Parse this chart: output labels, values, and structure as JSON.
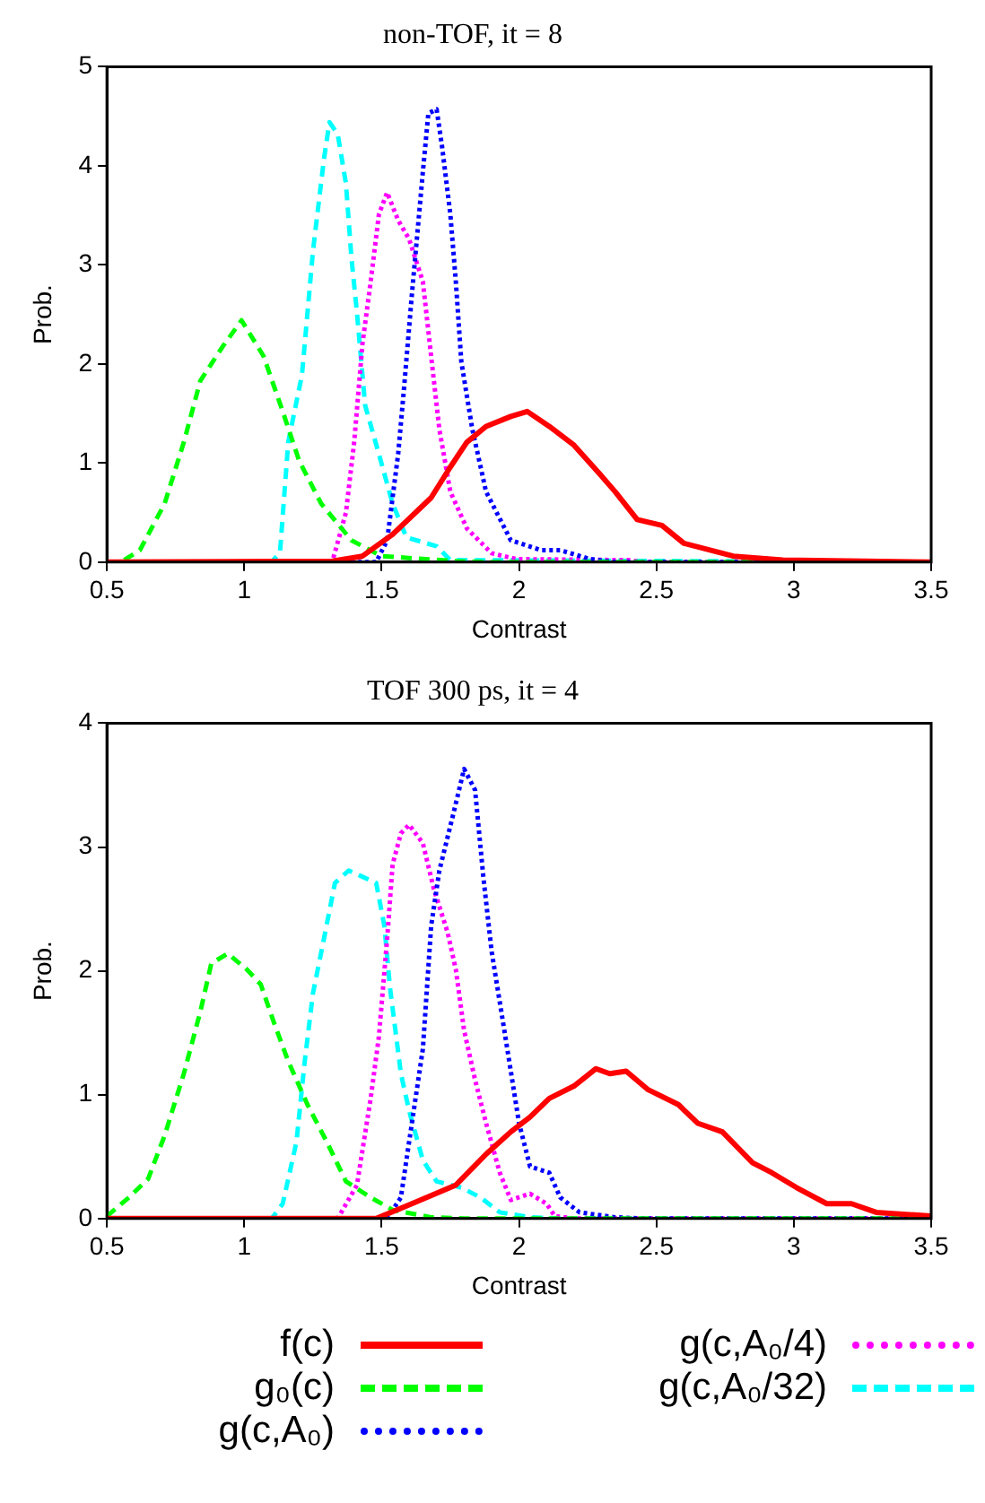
{
  "chart_data": [
    {
      "type": "line",
      "title": "non-TOF, it = 8",
      "xlabel": "Contrast",
      "ylabel": "Prob.",
      "xlim": [
        0.5,
        3.5
      ],
      "ylim": [
        0,
        5
      ],
      "xticks": [
        0.5,
        1,
        1.5,
        2,
        2.5,
        3,
        3.5
      ],
      "yticks": [
        0,
        1,
        2,
        3,
        4,
        5
      ],
      "grid": false,
      "legend": false,
      "marker": "none",
      "series": [
        {
          "color": "#ff0000",
          "line_style": "solid",
          "x": [
            0.5,
            1.32,
            1.43,
            1.54,
            1.68,
            1.75,
            1.81,
            1.88,
            1.97,
            2.03,
            2.11,
            2.2,
            2.29,
            2.35,
            2.43,
            2.52,
            2.6,
            2.78,
            2.96,
            3.5
          ],
          "values": [
            0,
            0.01,
            0.06,
            0.28,
            0.65,
            0.96,
            1.21,
            1.37,
            1.47,
            1.52,
            1.37,
            1.18,
            0.9,
            0.71,
            0.43,
            0.37,
            0.19,
            0.06,
            0.02,
            0
          ]
        },
        {
          "color": "#00ff00",
          "line_style": "dashed",
          "x": [
            0.5,
            0.55,
            0.62,
            0.71,
            0.78,
            0.84,
            0.92,
            0.99,
            1.07,
            1.14,
            1.2,
            1.28,
            1.39,
            1.5,
            1.77,
            1.9,
            3.5
          ],
          "values": [
            0,
            0,
            0.12,
            0.59,
            1.21,
            1.83,
            2.17,
            2.44,
            2.08,
            1.52,
            1.02,
            0.59,
            0.22,
            0.06,
            0.01,
            0,
            0
          ]
        },
        {
          "color": "#0000ff",
          "line_style": "dotted",
          "x": [
            0.5,
            1.48,
            1.52,
            1.56,
            1.58,
            1.61,
            1.65,
            1.67,
            1.7,
            1.72,
            1.75,
            1.77,
            1.79,
            1.83,
            1.88,
            1.97,
            2.08,
            2.15,
            2.26,
            2.35,
            3.5
          ],
          "values": [
            0,
            0,
            0.22,
            1.09,
            1.71,
            2.7,
            3.94,
            4.53,
            4.57,
            4.19,
            3.51,
            2.83,
            2.02,
            1.34,
            0.71,
            0.22,
            0.12,
            0.12,
            0.03,
            0,
            0
          ]
        },
        {
          "color": "#ff00ff",
          "line_style": "dotted",
          "x": [
            0.5,
            1.32,
            1.37,
            1.4,
            1.43,
            1.46,
            1.49,
            1.52,
            1.56,
            1.6,
            1.65,
            1.68,
            1.71,
            1.75,
            1.81,
            1.9,
            1.99,
            2.4,
            2.45,
            3.5
          ],
          "values": [
            0,
            0,
            0.5,
            1.21,
            2.2,
            2.83,
            3.51,
            3.73,
            3.45,
            3.26,
            2.83,
            2.08,
            1.34,
            0.71,
            0.34,
            0.09,
            0.03,
            0.02,
            0,
            0
          ]
        },
        {
          "color": "#00ffff",
          "line_style": "dashed",
          "x": [
            0.5,
            1.1,
            1.13,
            1.16,
            1.21,
            1.25,
            1.29,
            1.31,
            1.34,
            1.37,
            1.39,
            1.41,
            1.44,
            1.49,
            1.54,
            1.59,
            1.7,
            1.75,
            3.5
          ],
          "values": [
            0,
            0,
            0.1,
            1.21,
            1.89,
            3.14,
            4.07,
            4.44,
            4.32,
            3.82,
            3.07,
            2.52,
            1.58,
            1.09,
            0.59,
            0.25,
            0.16,
            0.02,
            0
          ]
        }
      ]
    },
    {
      "type": "line",
      "title": "TOF 300 ps, it = 4",
      "xlabel": "Contrast",
      "ylabel": "Prob.",
      "xlim": [
        0.5,
        3.5
      ],
      "ylim": [
        0,
        4
      ],
      "xticks": [
        0.5,
        1,
        1.5,
        2,
        2.5,
        3,
        3.5
      ],
      "yticks": [
        0,
        1,
        2,
        3,
        4
      ],
      "grid": false,
      "legend": "bottom",
      "marker": "none",
      "series": [
        {
          "name": "f(c)",
          "color": "#ff0000",
          "line_style": "solid",
          "x": [
            0.5,
            1.48,
            1.61,
            1.77,
            1.88,
            1.97,
            2.04,
            2.11,
            2.2,
            2.28,
            2.33,
            2.39,
            2.47,
            2.58,
            2.65,
            2.74,
            2.85,
            2.92,
            3.01,
            3.12,
            3.21,
            3.3,
            3.5
          ],
          "values": [
            0,
            0,
            0.12,
            0.27,
            0.52,
            0.7,
            0.82,
            0.97,
            1.07,
            1.21,
            1.17,
            1.19,
            1.04,
            0.92,
            0.77,
            0.7,
            0.45,
            0.37,
            0.25,
            0.12,
            0.12,
            0.05,
            0.02
          ]
        },
        {
          "name": "g₀(c)",
          "color": "#00ff00",
          "line_style": "dashed",
          "x": [
            0.5,
            0.58,
            0.65,
            0.71,
            0.78,
            0.84,
            0.88,
            0.94,
            1.01,
            1.06,
            1.11,
            1.16,
            1.23,
            1.3,
            1.37,
            1.46,
            1.54,
            1.68,
            1.8,
            3.5
          ],
          "values": [
            0.02,
            0.17,
            0.32,
            0.67,
            1.17,
            1.67,
            2.06,
            2.14,
            2.01,
            1.89,
            1.57,
            1.27,
            0.92,
            0.62,
            0.3,
            0.17,
            0.07,
            0.01,
            0,
            0
          ]
        },
        {
          "name": "g(c,A₀)",
          "color": "#0000ff",
          "line_style": "dotted",
          "x": [
            0.5,
            1.52,
            1.57,
            1.61,
            1.65,
            1.68,
            1.71,
            1.76,
            1.8,
            1.84,
            1.87,
            1.9,
            1.95,
            2.0,
            2.04,
            2.11,
            2.15,
            2.22,
            2.35,
            2.45,
            3.5
          ],
          "values": [
            0,
            0,
            0.17,
            0.77,
            1.37,
            2.36,
            2.81,
            3.26,
            3.63,
            3.46,
            2.76,
            2.16,
            1.47,
            0.77,
            0.42,
            0.37,
            0.17,
            0.05,
            0.01,
            0,
            0
          ]
        },
        {
          "name": "g(c,A₀/4)",
          "color": "#ff00ff",
          "line_style": "dotted",
          "x": [
            0.5,
            1.34,
            1.41,
            1.46,
            1.49,
            1.52,
            1.54,
            1.57,
            1.6,
            1.65,
            1.69,
            1.74,
            1.77,
            1.8,
            1.84,
            1.88,
            1.93,
            1.97,
            2.04,
            2.1,
            2.13,
            2.2,
            3.5
          ],
          "values": [
            0,
            0,
            0.27,
            0.97,
            1.47,
            2.26,
            2.86,
            3.11,
            3.18,
            3.03,
            2.66,
            2.31,
            2.01,
            1.52,
            1.12,
            0.77,
            0.37,
            0.15,
            0.2,
            0.12,
            0.02,
            0,
            0
          ]
        },
        {
          "name": "g(c,A₀/32)",
          "color": "#00ffff",
          "line_style": "dashed",
          "x": [
            0.5,
            1.1,
            1.14,
            1.19,
            1.22,
            1.25,
            1.29,
            1.33,
            1.38,
            1.43,
            1.48,
            1.51,
            1.53,
            1.57,
            1.6,
            1.65,
            1.7,
            1.79,
            1.86,
            1.93,
            2.04,
            2.15,
            3.5
          ],
          "values": [
            0,
            0,
            0.12,
            0.62,
            1.27,
            1.82,
            2.26,
            2.71,
            2.81,
            2.76,
            2.71,
            2.36,
            1.87,
            1.17,
            0.87,
            0.47,
            0.3,
            0.25,
            0.17,
            0.05,
            0.01,
            0,
            0
          ]
        }
      ]
    }
  ]
}
